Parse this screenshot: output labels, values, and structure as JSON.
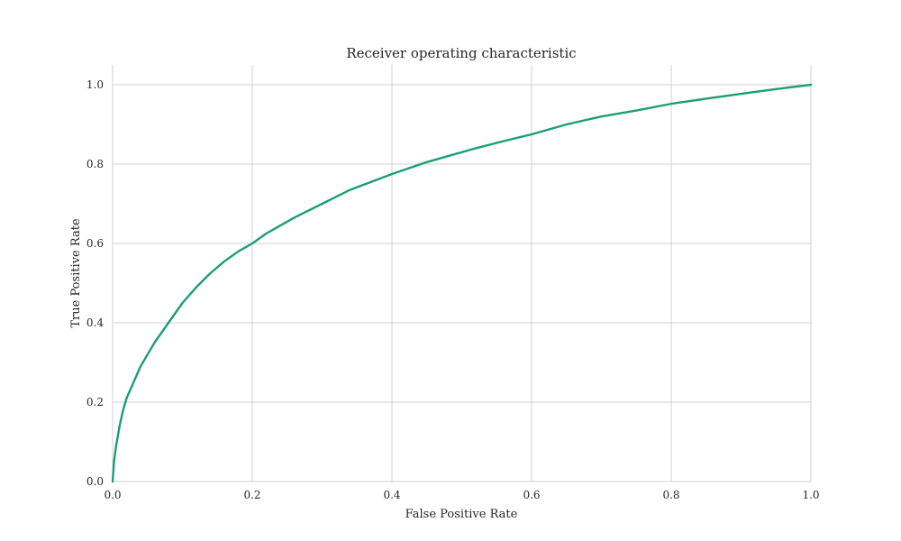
{
  "chart_data": {
    "type": "line",
    "title": "Receiver operating characteristic",
    "xlabel": "False Positive Rate",
    "ylabel": "True Positive Rate",
    "xlim": [
      0.0,
      1.0
    ],
    "ylim": [
      0.0,
      1.05
    ],
    "xticks": [
      0.0,
      0.2,
      0.4,
      0.6,
      0.8,
      1.0
    ],
    "xtick_labels": [
      "0.0",
      "0.2",
      "0.4",
      "0.6",
      "0.8",
      "1.0"
    ],
    "yticks": [
      0.0,
      0.2,
      0.4,
      0.6,
      0.8,
      1.0
    ],
    "ytick_labels": [
      "0.0",
      "0.2",
      "0.4",
      "0.6",
      "0.8",
      "1.0"
    ],
    "grid": true,
    "series": [
      {
        "color": "#1b9e77",
        "x": [
          0.0,
          0.002,
          0.005,
          0.01,
          0.015,
          0.02,
          0.03,
          0.04,
          0.05,
          0.06,
          0.07,
          0.08,
          0.09,
          0.1,
          0.12,
          0.14,
          0.16,
          0.18,
          0.2,
          0.22,
          0.26,
          0.3,
          0.34,
          0.4,
          0.45,
          0.48,
          0.52,
          0.56,
          0.6,
          0.65,
          0.7,
          0.75,
          0.8,
          0.85,
          0.9,
          0.95,
          1.0
        ],
        "y": [
          0.0,
          0.05,
          0.09,
          0.14,
          0.18,
          0.21,
          0.25,
          0.29,
          0.32,
          0.35,
          0.375,
          0.4,
          0.425,
          0.45,
          0.49,
          0.525,
          0.555,
          0.58,
          0.6,
          0.625,
          0.665,
          0.7,
          0.735,
          0.775,
          0.805,
          0.82,
          0.84,
          0.858,
          0.875,
          0.9,
          0.92,
          0.935,
          0.952,
          0.965,
          0.977,
          0.989,
          1.0
        ]
      }
    ]
  }
}
